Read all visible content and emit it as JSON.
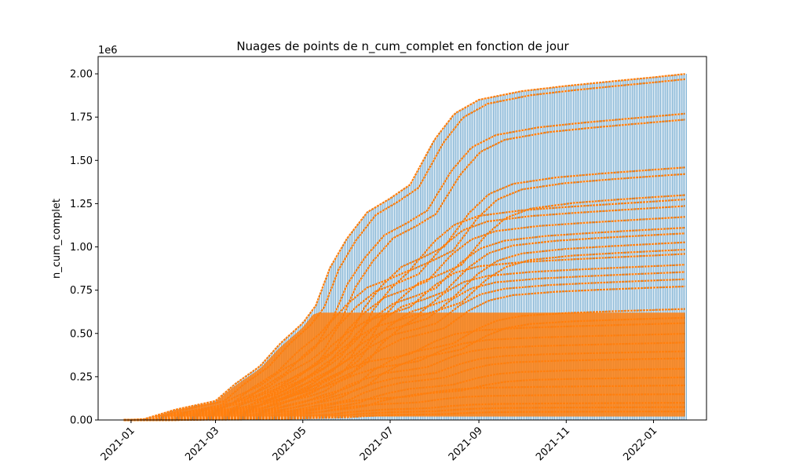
{
  "chart_data": {
    "type": "scatter",
    "title": "Nuages de points de n_cum_complet en fonction de jour",
    "xlabel": "",
    "ylabel": "n_cum_complet",
    "y_offset_label": "1e6",
    "x_range": [
      "2020-12-09",
      "2022-02-07"
    ],
    "y_range": [
      0,
      2100000
    ],
    "x_ticks": [
      "2021-01",
      "2021-03",
      "2021-05",
      "2021-07",
      "2021-09",
      "2021-11",
      "2022-01"
    ],
    "x_tick_dates": [
      "2021-01-01",
      "2021-03-01",
      "2021-05-01",
      "2021-07-01",
      "2021-09-01",
      "2021-11-01",
      "2022-01-01"
    ],
    "y_ticks": [
      "0.00",
      "0.25",
      "0.50",
      "0.75",
      "1.00",
      "1.25",
      "1.50",
      "1.75",
      "2.00"
    ],
    "y_tick_values": [
      0,
      250000,
      500000,
      750000,
      1000000,
      1250000,
      1500000,
      1750000,
      2000000
    ],
    "grid": false,
    "series": [
      {
        "color": "#1f77b4",
        "style": "vertical-lines",
        "date_range": [
          "2020-12-27",
          "2022-01-24"
        ],
        "upper_envelope": [
          [
            "2020-12-27",
            0
          ],
          [
            "2021-01-10",
            5000
          ],
          [
            "2021-02-01",
            60000
          ],
          [
            "2021-03-01",
            110000
          ],
          [
            "2021-03-15",
            210000
          ],
          [
            "2021-04-01",
            310000
          ],
          [
            "2021-04-15",
            440000
          ],
          [
            "2021-05-01",
            560000
          ],
          [
            "2021-05-10",
            660000
          ],
          [
            "2021-05-20",
            880000
          ],
          [
            "2021-06-01",
            1050000
          ],
          [
            "2021-06-15",
            1200000
          ],
          [
            "2021-07-01",
            1280000
          ],
          [
            "2021-07-15",
            1360000
          ],
          [
            "2021-08-01",
            1620000
          ],
          [
            "2021-08-15",
            1770000
          ],
          [
            "2021-09-01",
            1850000
          ],
          [
            "2021-10-01",
            1900000
          ],
          [
            "2021-11-01",
            1930000
          ],
          [
            "2021-12-01",
            1955000
          ],
          [
            "2022-01-01",
            1980000
          ],
          [
            "2022-01-24",
            2000000
          ]
        ]
      },
      {
        "color": "#ff7f0e",
        "style": "points",
        "date_range": [
          "2020-12-27",
          "2022-01-24"
        ],
        "curves_final_values": [
          2000000,
          1975000,
          1780000,
          1750000,
          1475000,
          1440000,
          1320000,
          1275000,
          1240000,
          1180000,
          1120000,
          1090000,
          1040000,
          1000000,
          960000,
          900000,
          860000,
          820000,
          780000,
          650000,
          600000,
          560000,
          500000,
          450000,
          400000,
          360000,
          300000,
          250000,
          200000,
          150000,
          100000,
          75000,
          50000
        ]
      }
    ]
  }
}
